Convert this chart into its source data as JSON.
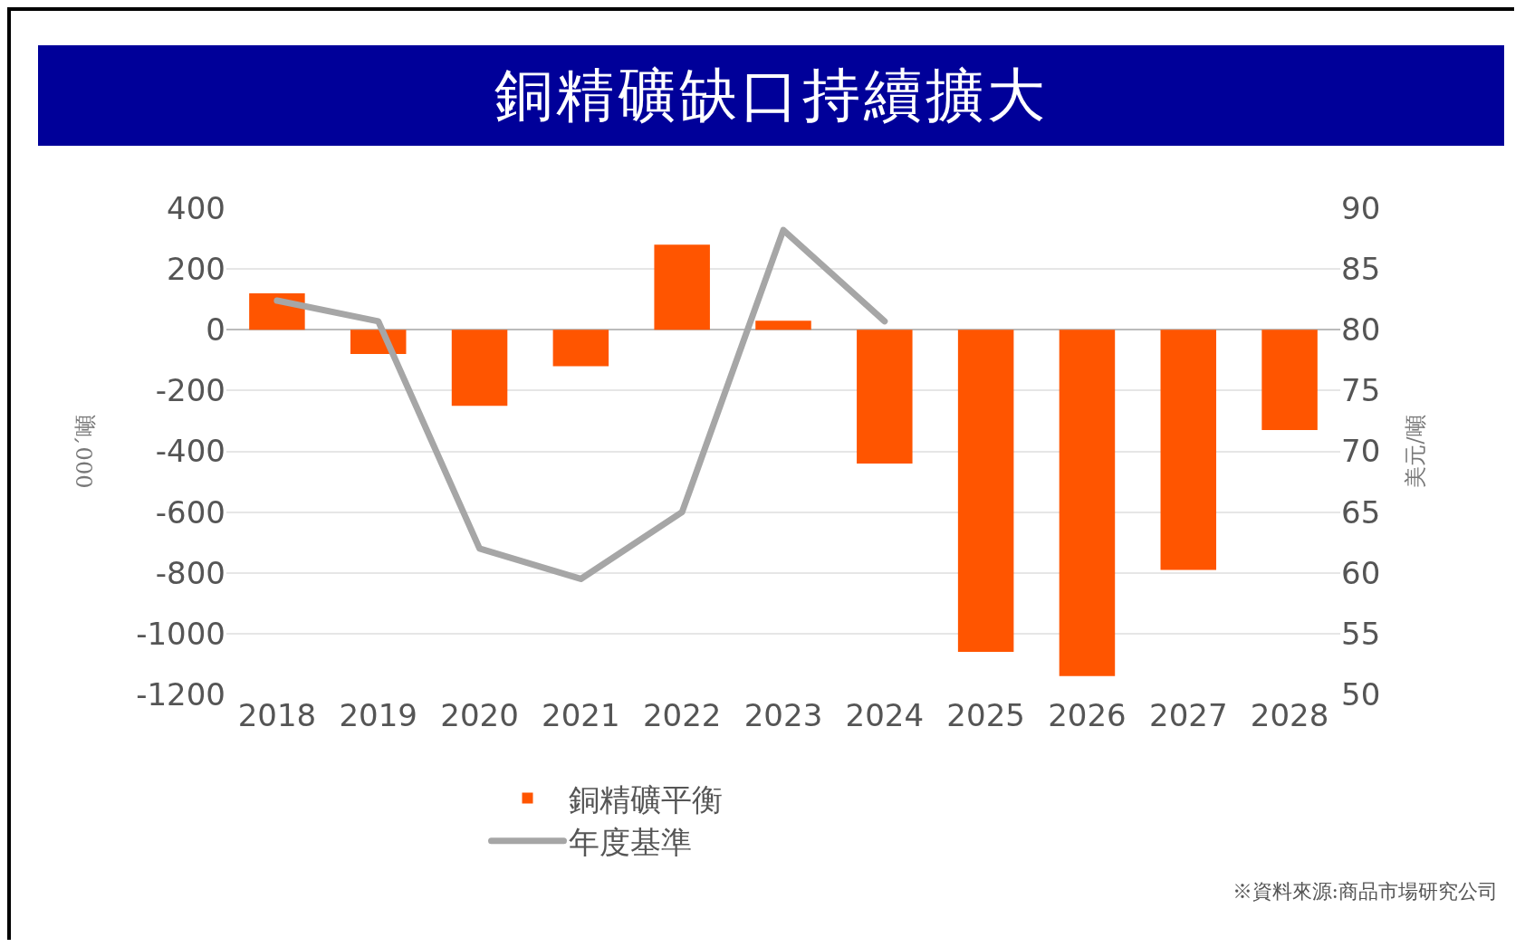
{
  "chart_data": {
    "type": "bar",
    "title": "銅精礦缺口持續擴大",
    "ylabel": "000´噸",
    "y2label": "美元/噸",
    "categories": [
      "2018",
      "2019",
      "2020",
      "2021",
      "2022",
      "2023",
      "2024",
      "2025",
      "2026",
      "2027",
      "2028"
    ],
    "series": [
      {
        "name": "銅精礦平衡",
        "color": "#ff5500",
        "values": [
          120,
          -80,
          -250,
          -120,
          280,
          30,
          -440,
          -1060,
          -1140,
          -790,
          -330
        ]
      },
      {
        "name": "年度基準",
        "type": "line",
        "axis": "y2",
        "color": "#a6a6a6",
        "values": [
          82.4,
          80.7,
          62.0,
          59.5,
          65.0,
          88.2,
          80.7,
          null,
          null,
          null,
          null
        ]
      }
    ],
    "ylim": [
      -1200,
      400
    ],
    "yticks": [
      -1200,
      -1000,
      -800,
      -600,
      -400,
      -200,
      0,
      200,
      400
    ],
    "y2lim": [
      50,
      90
    ],
    "y2ticks": [
      50,
      55,
      60,
      65,
      70,
      75,
      80,
      85,
      90
    ],
    "grid": "y",
    "legend": "bottom",
    "marker": "none",
    "line_style": "solid",
    "annotations": [
      "※資料來源:商品市場研究公司"
    ]
  }
}
